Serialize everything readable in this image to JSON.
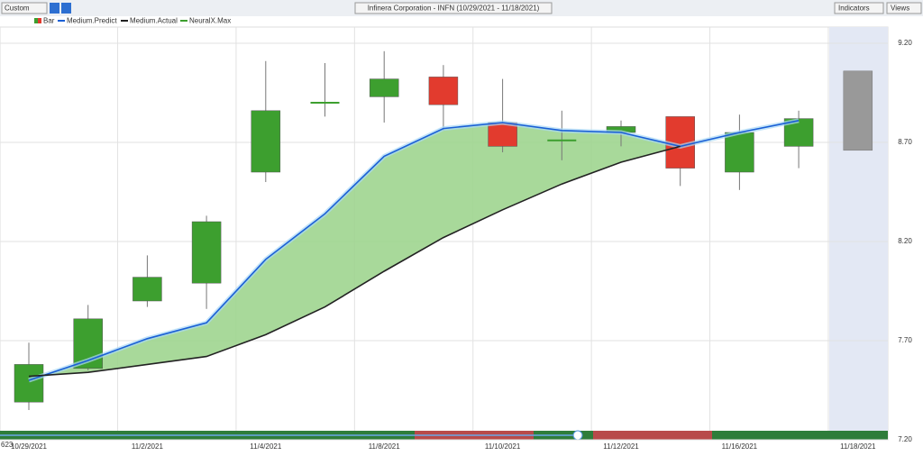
{
  "toolbar": {
    "preset": "Custom",
    "indicators": "Indicators",
    "views": "Views"
  },
  "corner_text": "623",
  "chart_data": {
    "type": "candlestick",
    "title": "Infinera Corporation - INFN (10/29/2021 - 11/18/2021)",
    "legend": [
      "Bar",
      "Medium.Predict",
      "Medium.Actual",
      "NeuralX.Max"
    ],
    "categories": [
      "10/29/2021",
      null,
      "11/2/2021",
      null,
      "11/4/2021",
      null,
      "11/8/2021",
      null,
      "11/10/2021",
      null,
      "11/12/2021",
      null,
      "11/16/2021",
      null,
      "11/18/2021"
    ],
    "up_color": "#3d9f2f",
    "down_color": "#e23b2e",
    "candles": [
      {
        "open": 7.39,
        "close": 7.58,
        "high": 7.69,
        "low": 7.35
      },
      {
        "open": 7.56,
        "close": 7.81,
        "high": 7.88,
        "low": 7.55
      },
      {
        "open": 7.9,
        "close": 8.02,
        "high": 8.13,
        "low": 7.87
      },
      {
        "open": 7.99,
        "close": 8.3,
        "high": 8.33,
        "low": 7.86
      },
      {
        "open": 8.55,
        "close": 8.86,
        "high": 9.11,
        "low": 8.5
      },
      {
        "open": 8.9,
        "close": 8.9,
        "high": 9.1,
        "low": 8.83
      },
      {
        "open": 8.93,
        "close": 9.02,
        "high": 9.16,
        "low": 8.8
      },
      {
        "open": 9.03,
        "close": 8.89,
        "high": 9.09,
        "low": 8.76
      },
      {
        "open": 8.8,
        "close": 8.68,
        "high": 9.02,
        "low": 8.65
      },
      {
        "open": 8.71,
        "close": 8.71,
        "high": 8.86,
        "low": 8.61
      },
      {
        "open": 8.75,
        "close": 8.78,
        "high": 8.81,
        "low": 8.68
      },
      {
        "open": 8.83,
        "close": 8.57,
        "high": 8.83,
        "low": 8.48
      },
      {
        "open": 8.55,
        "close": 8.75,
        "high": 8.84,
        "low": 8.46
      },
      {
        "open": 8.68,
        "close": 8.82,
        "high": 8.86,
        "low": 8.57
      }
    ],
    "forecast": {
      "index": 14,
      "low": 8.66,
      "high": 9.06,
      "color": "#999999"
    },
    "series": [
      {
        "name": "Medium.Predict",
        "color": "#1a5fd6",
        "values": [
          7.5,
          7.6,
          7.71,
          7.79,
          8.11,
          8.34,
          8.63,
          8.77,
          8.8,
          8.76,
          8.75,
          8.68,
          8.75,
          8.81,
          null
        ]
      },
      {
        "name": "Medium.Actual",
        "color": "#222222",
        "values": [
          7.52,
          7.54,
          7.58,
          7.62,
          7.73,
          7.87,
          8.05,
          8.22,
          8.36,
          8.49,
          8.6,
          8.68,
          null,
          null,
          null
        ]
      }
    ],
    "fill_color": "#9fd58f",
    "ylim": [
      7.2,
      9.2
    ],
    "yticks": [
      {
        "value": 7.2,
        "label": "7.20"
      },
      {
        "value": 7.7,
        "label": "7.70"
      },
      {
        "value": 8.2,
        "label": "8.20"
      },
      {
        "value": 8.7,
        "label": "8.70"
      },
      {
        "value": 9.2,
        "label": "9.20"
      }
    ],
    "grid": true
  }
}
